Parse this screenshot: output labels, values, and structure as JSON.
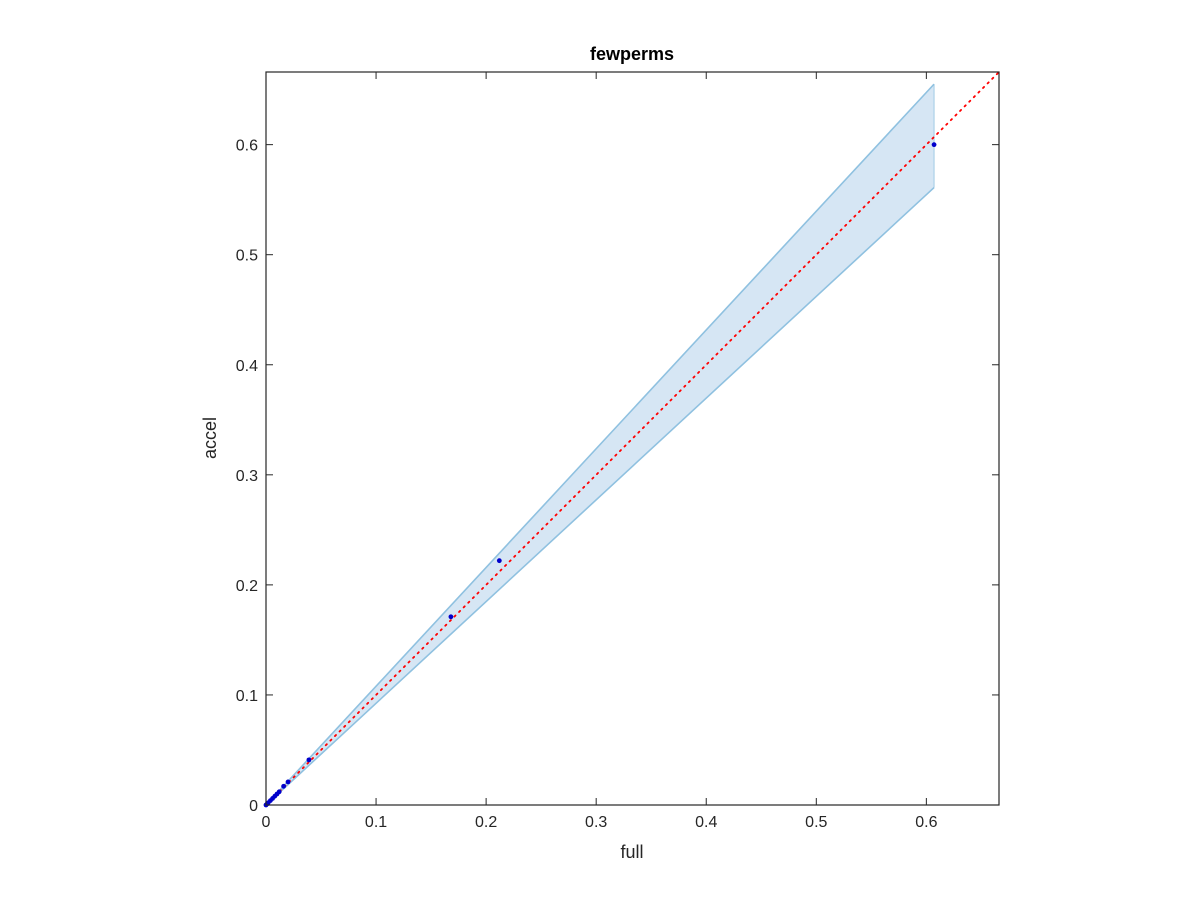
{
  "chart_data": {
    "type": "scatter",
    "title": "fewperms",
    "xlabel": "full",
    "ylabel": "accel",
    "xlim": [
      0,
      0.666
    ],
    "ylim": [
      0,
      0.666
    ],
    "xticks": [
      0,
      0.1,
      0.2,
      0.3,
      0.4,
      0.5,
      0.6
    ],
    "yticks": [
      0,
      0.1,
      0.2,
      0.3,
      0.4,
      0.5,
      0.6
    ],
    "xtick_labels": [
      "0",
      "0.1",
      "0.2",
      "0.3",
      "0.4",
      "0.5",
      "0.6"
    ],
    "ytick_labels": [
      "0",
      "0.1",
      "0.2",
      "0.3",
      "0.4",
      "0.5",
      "0.6"
    ],
    "grid": false,
    "legend": null,
    "points": {
      "x": [
        0,
        0.001,
        0.002,
        0.004,
        0.006,
        0.008,
        0.01,
        0.012,
        0.016,
        0.02,
        0.039,
        0.168,
        0.212,
        0.607
      ],
      "y": [
        0,
        0.001,
        0.002,
        0.004,
        0.006,
        0.008,
        0.01,
        0.012,
        0.017,
        0.021,
        0.041,
        0.171,
        0.222,
        0.6
      ],
      "color": "#0000cc"
    },
    "band": {
      "x": [
        0,
        0.607
      ],
      "upper": [
        0,
        0.655
      ],
      "lower": [
        0,
        0.561
      ],
      "fill_color": "#d6e6f4",
      "edge_color": "#8fc1e0"
    },
    "reference_line": {
      "x": [
        0,
        0.666
      ],
      "y": [
        0,
        0.666
      ],
      "style": "dotted",
      "color": "#ff0000"
    }
  }
}
